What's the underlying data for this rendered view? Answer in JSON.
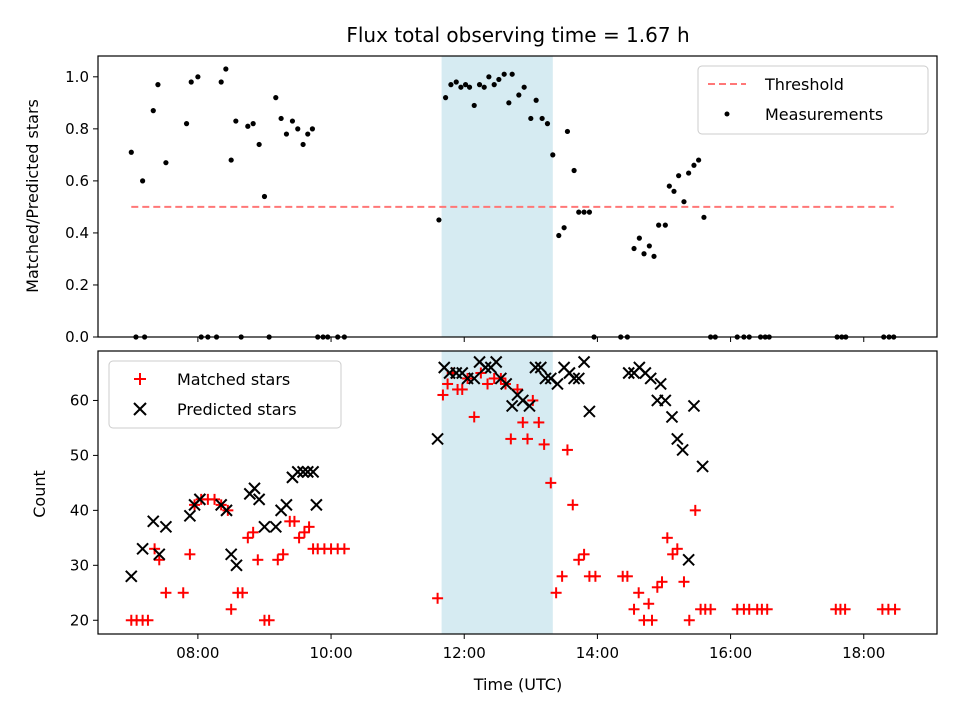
{
  "chart_data": [
    {
      "type": "scatter",
      "title": "Flux total observing time = 1.67 h",
      "xlabel": "",
      "ylabel": "Matched/Predicted stars",
      "xlim": [
        6.5,
        19.1
      ],
      "ylim": [
        0.0,
        1.08
      ],
      "yticks": [
        0.0,
        0.2,
        0.4,
        0.6,
        0.8,
        1.0
      ],
      "ytick_labels": [
        "0.0",
        "0.2",
        "0.4",
        "0.6",
        "0.8",
        "1.0"
      ],
      "xticks": [
        8,
        10,
        12,
        14,
        16,
        18
      ],
      "grid": false,
      "legend_position": "top-right",
      "highlight_span": {
        "x0": 11.66,
        "x1": 13.33,
        "color": "#add8e6"
      },
      "threshold": {
        "name": "Threshold",
        "value": 0.5,
        "x0": 7.0,
        "x1": 18.45,
        "color": "#ff7777"
      },
      "series": [
        {
          "name": "Measurements",
          "color": "#000000",
          "points": [
            [
              7.0,
              0.71
            ],
            [
              7.07,
              0.0
            ],
            [
              7.17,
              0.6
            ],
            [
              7.2,
              0.0
            ],
            [
              7.33,
              0.87
            ],
            [
              7.4,
              0.97
            ],
            [
              7.52,
              0.67
            ],
            [
              7.83,
              0.82
            ],
            [
              7.9,
              0.98
            ],
            [
              8.0,
              1.0
            ],
            [
              8.05,
              0.0
            ],
            [
              8.15,
              0.0
            ],
            [
              8.28,
              0.0
            ],
            [
              8.35,
              0.98
            ],
            [
              8.42,
              1.03
            ],
            [
              8.5,
              0.68
            ],
            [
              8.57,
              0.83
            ],
            [
              8.65,
              0.0
            ],
            [
              8.75,
              0.81
            ],
            [
              8.83,
              0.82
            ],
            [
              8.92,
              0.74
            ],
            [
              9.0,
              0.54
            ],
            [
              9.07,
              0.0
            ],
            [
              9.17,
              0.92
            ],
            [
              9.25,
              0.84
            ],
            [
              9.33,
              0.78
            ],
            [
              9.42,
              0.83
            ],
            [
              9.5,
              0.8
            ],
            [
              9.58,
              0.74
            ],
            [
              9.65,
              0.78
            ],
            [
              9.72,
              0.8
            ],
            [
              9.8,
              0.0
            ],
            [
              9.88,
              0.0
            ],
            [
              9.95,
              0.0
            ],
            [
              10.1,
              0.0
            ],
            [
              10.2,
              0.0
            ],
            [
              11.62,
              0.45
            ],
            [
              11.72,
              0.92
            ],
            [
              11.8,
              0.97
            ],
            [
              11.88,
              0.98
            ],
            [
              11.95,
              0.96
            ],
            [
              12.02,
              0.97
            ],
            [
              12.08,
              0.96
            ],
            [
              12.15,
              0.89
            ],
            [
              12.23,
              0.97
            ],
            [
              12.3,
              0.96
            ],
            [
              12.37,
              1.0
            ],
            [
              12.45,
              0.97
            ],
            [
              12.52,
              0.99
            ],
            [
              12.6,
              1.01
            ],
            [
              12.67,
              0.9
            ],
            [
              12.72,
              1.01
            ],
            [
              12.82,
              0.93
            ],
            [
              12.9,
              0.96
            ],
            [
              13.0,
              0.84
            ],
            [
              13.08,
              0.91
            ],
            [
              13.17,
              0.84
            ],
            [
              13.25,
              0.82
            ],
            [
              13.33,
              0.7
            ],
            [
              13.42,
              0.39
            ],
            [
              13.5,
              0.42
            ],
            [
              13.55,
              0.79
            ],
            [
              13.65,
              0.64
            ],
            [
              13.72,
              0.48
            ],
            [
              13.8,
              0.48
            ],
            [
              13.88,
              0.48
            ],
            [
              13.95,
              0.0
            ],
            [
              14.35,
              0.0
            ],
            [
              14.45,
              0.0
            ],
            [
              14.55,
              0.34
            ],
            [
              14.63,
              0.38
            ],
            [
              14.7,
              0.32
            ],
            [
              14.78,
              0.35
            ],
            [
              14.85,
              0.31
            ],
            [
              14.92,
              0.43
            ],
            [
              15.02,
              0.43
            ],
            [
              15.08,
              0.58
            ],
            [
              15.15,
              0.56
            ],
            [
              15.22,
              0.62
            ],
            [
              15.3,
              0.52
            ],
            [
              15.37,
              0.63
            ],
            [
              15.45,
              0.66
            ],
            [
              15.52,
              0.68
            ],
            [
              15.6,
              0.46
            ],
            [
              15.7,
              0.0
            ],
            [
              15.77,
              0.0
            ],
            [
              16.1,
              0.0
            ],
            [
              16.2,
              0.0
            ],
            [
              16.28,
              0.0
            ],
            [
              16.45,
              0.0
            ],
            [
              16.52,
              0.0
            ],
            [
              16.58,
              0.0
            ],
            [
              17.6,
              0.0
            ],
            [
              17.67,
              0.0
            ],
            [
              17.73,
              0.0
            ],
            [
              18.3,
              0.0
            ],
            [
              18.38,
              0.0
            ],
            [
              18.45,
              0.0
            ]
          ]
        }
      ]
    },
    {
      "type": "scatter",
      "title": "",
      "xlabel": "Time (UTC)",
      "ylabel": "Count",
      "xlim": [
        6.5,
        19.1
      ],
      "ylim": [
        17.5,
        69
      ],
      "yticks": [
        20,
        30,
        40,
        50,
        60
      ],
      "ytick_labels": [
        "20",
        "30",
        "40",
        "50",
        "60"
      ],
      "xticks": [
        8,
        10,
        12,
        14,
        16,
        18
      ],
      "xtick_labels": [
        "08:00",
        "10:00",
        "12:00",
        "14:00",
        "16:00",
        "18:00"
      ],
      "grid": false,
      "legend_position": "top-left",
      "highlight_span": {
        "x0": 11.66,
        "x1": 13.33,
        "color": "#add8e6"
      },
      "series": [
        {
          "name": "Matched stars",
          "marker": "+",
          "color": "#ff0000",
          "points": [
            [
              7.0,
              20
            ],
            [
              7.08,
              20
            ],
            [
              7.17,
              20
            ],
            [
              7.25,
              20
            ],
            [
              7.35,
              33
            ],
            [
              7.42,
              31
            ],
            [
              7.52,
              25
            ],
            [
              7.78,
              25
            ],
            [
              7.88,
              32
            ],
            [
              7.95,
              41
            ],
            [
              8.05,
              42
            ],
            [
              8.15,
              42
            ],
            [
              8.25,
              42
            ],
            [
              8.35,
              41
            ],
            [
              8.45,
              40
            ],
            [
              8.5,
              22
            ],
            [
              8.6,
              25
            ],
            [
              8.67,
              25
            ],
            [
              8.75,
              35
            ],
            [
              8.83,
              36
            ],
            [
              8.9,
              31
            ],
            [
              9.0,
              20
            ],
            [
              9.07,
              20
            ],
            [
              9.2,
              31
            ],
            [
              9.28,
              32
            ],
            [
              9.38,
              38
            ],
            [
              9.45,
              38
            ],
            [
              9.52,
              35
            ],
            [
              9.6,
              36
            ],
            [
              9.67,
              37
            ],
            [
              9.73,
              33
            ],
            [
              9.8,
              33
            ],
            [
              9.9,
              33
            ],
            [
              10.0,
              33
            ],
            [
              10.1,
              33
            ],
            [
              10.2,
              33
            ],
            [
              11.6,
              24
            ],
            [
              11.68,
              61
            ],
            [
              11.75,
              63
            ],
            [
              11.82,
              65
            ],
            [
              11.9,
              62
            ],
            [
              11.97,
              62
            ],
            [
              12.05,
              64
            ],
            [
              12.15,
              57
            ],
            [
              12.25,
              65
            ],
            [
              12.35,
              63
            ],
            [
              12.45,
              64
            ],
            [
              12.55,
              64
            ],
            [
              12.62,
              63
            ],
            [
              12.7,
              53
            ],
            [
              12.8,
              62
            ],
            [
              12.88,
              56
            ],
            [
              12.95,
              53
            ],
            [
              13.03,
              60
            ],
            [
              13.12,
              56
            ],
            [
              13.2,
              52
            ],
            [
              13.3,
              45
            ],
            [
              13.38,
              25
            ],
            [
              13.47,
              28
            ],
            [
              13.55,
              51
            ],
            [
              13.63,
              41
            ],
            [
              13.72,
              31
            ],
            [
              13.8,
              32
            ],
            [
              13.88,
              28
            ],
            [
              13.97,
              28
            ],
            [
              14.38,
              28
            ],
            [
              14.45,
              28
            ],
            [
              14.55,
              22
            ],
            [
              14.62,
              25
            ],
            [
              14.7,
              20
            ],
            [
              14.77,
              23
            ],
            [
              14.82,
              20
            ],
            [
              14.9,
              26
            ],
            [
              14.97,
              27
            ],
            [
              15.05,
              35
            ],
            [
              15.13,
              32
            ],
            [
              15.2,
              33
            ],
            [
              15.3,
              27
            ],
            [
              15.38,
              20
            ],
            [
              15.47,
              40
            ],
            [
              15.55,
              22
            ],
            [
              15.62,
              22
            ],
            [
              15.7,
              22
            ],
            [
              16.1,
              22
            ],
            [
              16.2,
              22
            ],
            [
              16.28,
              22
            ],
            [
              16.4,
              22
            ],
            [
              16.47,
              22
            ],
            [
              16.55,
              22
            ],
            [
              17.58,
              22
            ],
            [
              17.65,
              22
            ],
            [
              17.72,
              22
            ],
            [
              18.28,
              22
            ],
            [
              18.37,
              22
            ],
            [
              18.47,
              22
            ]
          ]
        },
        {
          "name": "Predicted stars",
          "marker": "x",
          "color": "#000000",
          "points": [
            [
              7.0,
              28
            ],
            [
              7.17,
              33
            ],
            [
              7.33,
              38
            ],
            [
              7.42,
              32
            ],
            [
              7.52,
              37
            ],
            [
              7.88,
              39
            ],
            [
              7.95,
              41
            ],
            [
              8.03,
              42
            ],
            [
              8.35,
              41
            ],
            [
              8.43,
              40
            ],
            [
              8.5,
              32
            ],
            [
              8.58,
              30
            ],
            [
              8.78,
              43
            ],
            [
              8.85,
              44
            ],
            [
              8.92,
              42
            ],
            [
              9.0,
              37
            ],
            [
              9.17,
              37
            ],
            [
              9.25,
              40
            ],
            [
              9.33,
              41
            ],
            [
              9.42,
              46
            ],
            [
              9.5,
              47
            ],
            [
              9.58,
              47
            ],
            [
              9.65,
              47
            ],
            [
              9.73,
              47
            ],
            [
              9.78,
              41
            ],
            [
              11.6,
              53
            ],
            [
              11.7,
              66
            ],
            [
              11.78,
              65
            ],
            [
              11.88,
              65
            ],
            [
              11.97,
              65
            ],
            [
              12.05,
              64
            ],
            [
              12.15,
              64
            ],
            [
              12.23,
              67
            ],
            [
              12.32,
              66
            ],
            [
              12.4,
              66
            ],
            [
              12.48,
              67
            ],
            [
              12.55,
              64
            ],
            [
              12.63,
              63
            ],
            [
              12.72,
              59
            ],
            [
              12.8,
              61
            ],
            [
              12.88,
              60
            ],
            [
              12.98,
              59
            ],
            [
              13.07,
              66
            ],
            [
              13.15,
              66
            ],
            [
              13.22,
              64
            ],
            [
              13.3,
              64
            ],
            [
              13.4,
              63
            ],
            [
              13.5,
              66
            ],
            [
              13.58,
              65
            ],
            [
              13.65,
              64
            ],
            [
              13.72,
              64
            ],
            [
              13.8,
              67
            ],
            [
              13.88,
              58
            ],
            [
              14.47,
              65
            ],
            [
              14.55,
              65
            ],
            [
              14.63,
              66
            ],
            [
              14.72,
              65
            ],
            [
              14.8,
              64
            ],
            [
              14.9,
              60
            ],
            [
              14.95,
              63
            ],
            [
              15.02,
              60
            ],
            [
              15.12,
              57
            ],
            [
              15.2,
              53
            ],
            [
              15.28,
              51
            ],
            [
              15.37,
              31
            ],
            [
              15.45,
              59
            ],
            [
              15.58,
              48
            ]
          ]
        }
      ]
    }
  ]
}
